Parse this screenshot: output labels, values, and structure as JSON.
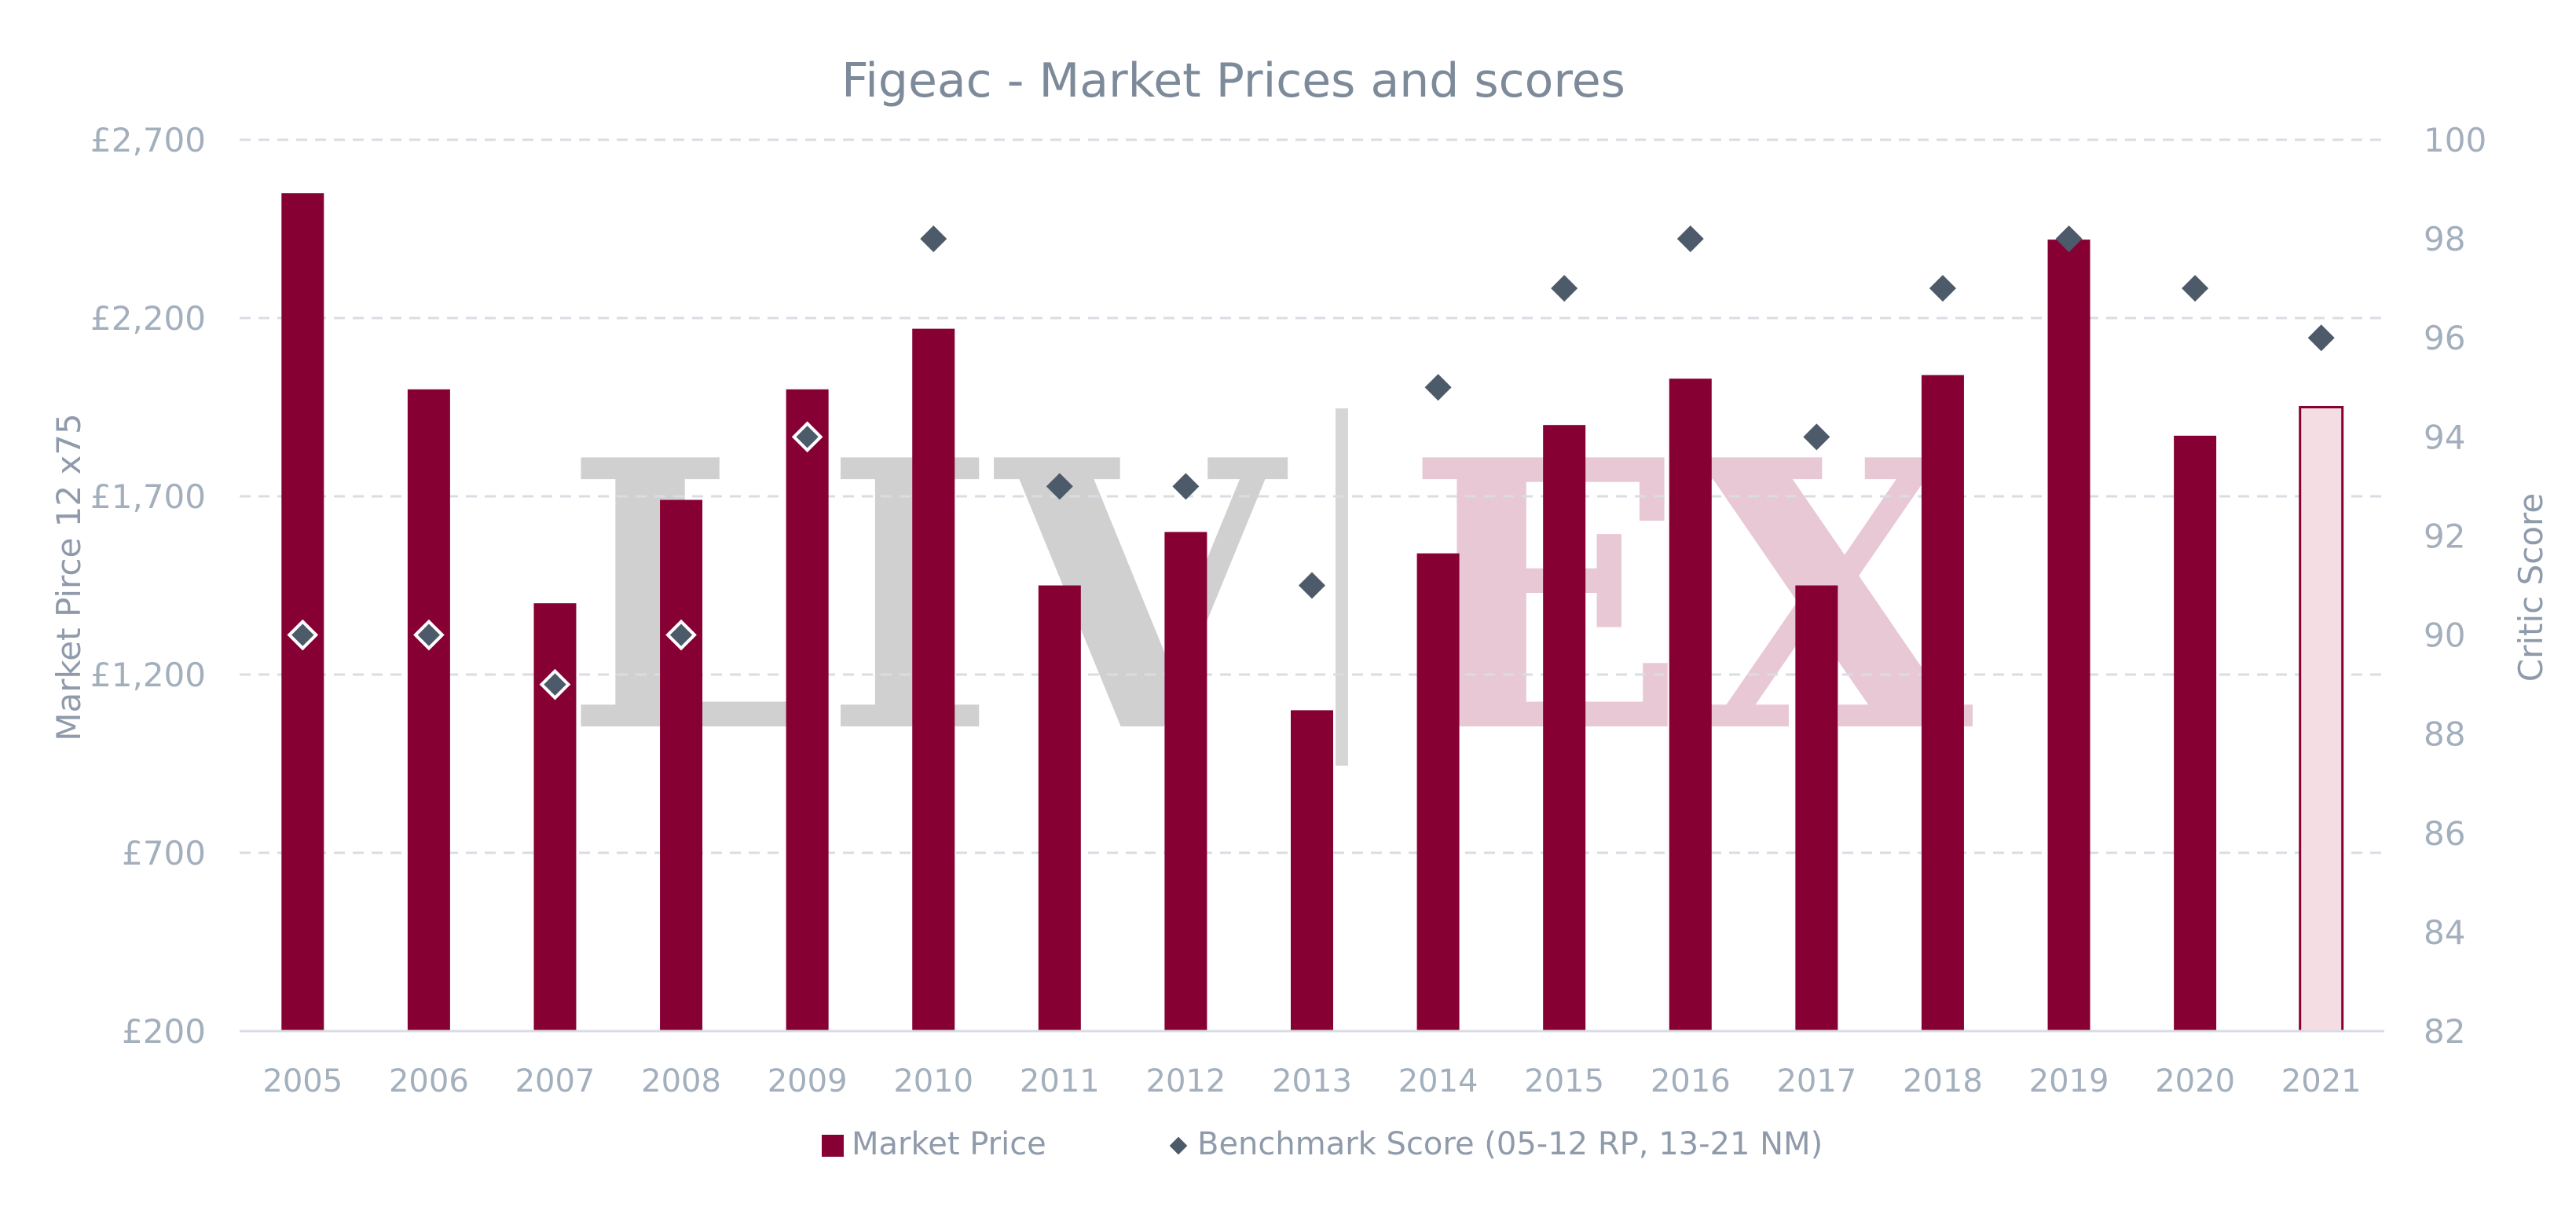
{
  "chart_data": {
    "type": "bar",
    "title": "Figeac - Market Prices and scores",
    "ylabel_left": "Market Pirce 12 x75",
    "ylabel_right": "Critic Score",
    "categories": [
      "2005",
      "2006",
      "2007",
      "2008",
      "2009",
      "2010",
      "2011",
      "2012",
      "2013",
      "2014",
      "2015",
      "2016",
      "2017",
      "2018",
      "2019",
      "2020",
      "2021"
    ],
    "left_axis": {
      "min": 200,
      "max": 2700,
      "ticks": [
        200,
        700,
        1200,
        1700,
        2200,
        2700
      ],
      "tick_labels": [
        "£200",
        "£700",
        "£1,200",
        "£1,700",
        "£2,200",
        "£2,700"
      ]
    },
    "right_axis": {
      "min": 82,
      "max": 100,
      "ticks": [
        82,
        84,
        86,
        88,
        90,
        92,
        94,
        96,
        98,
        100
      ],
      "tick_labels": [
        "82",
        "84",
        "86",
        "88",
        "90",
        "92",
        "94",
        "96",
        "98",
        "100"
      ]
    },
    "grid": true,
    "series": [
      {
        "name": "Market Price",
        "kind": "bar",
        "axis": "left",
        "color": "#870033",
        "values": [
          2550,
          2000,
          1400,
          1690,
          2000,
          2170,
          1450,
          1600,
          1100,
          1540,
          1900,
          2030,
          1450,
          2040,
          2420,
          1870,
          1950
        ],
        "highlight_last": {
          "fill": "#f5dde4",
          "stroke": "#870033"
        }
      },
      {
        "name": "Benchmark Score (05-12 RP, 13-21 NM)",
        "kind": "scatter",
        "axis": "right",
        "color": "#4d5a69",
        "values": [
          90,
          90,
          89,
          90,
          94,
          98,
          93,
          93,
          91,
          95,
          97,
          98,
          94,
          97,
          98,
          97,
          96
        ]
      }
    ],
    "legend_position": "bottom-center",
    "watermark": {
      "text_left": "LIV",
      "text_right": "EX",
      "color_left": "#d0d0d0",
      "color_right": "#e8c8d4"
    }
  }
}
